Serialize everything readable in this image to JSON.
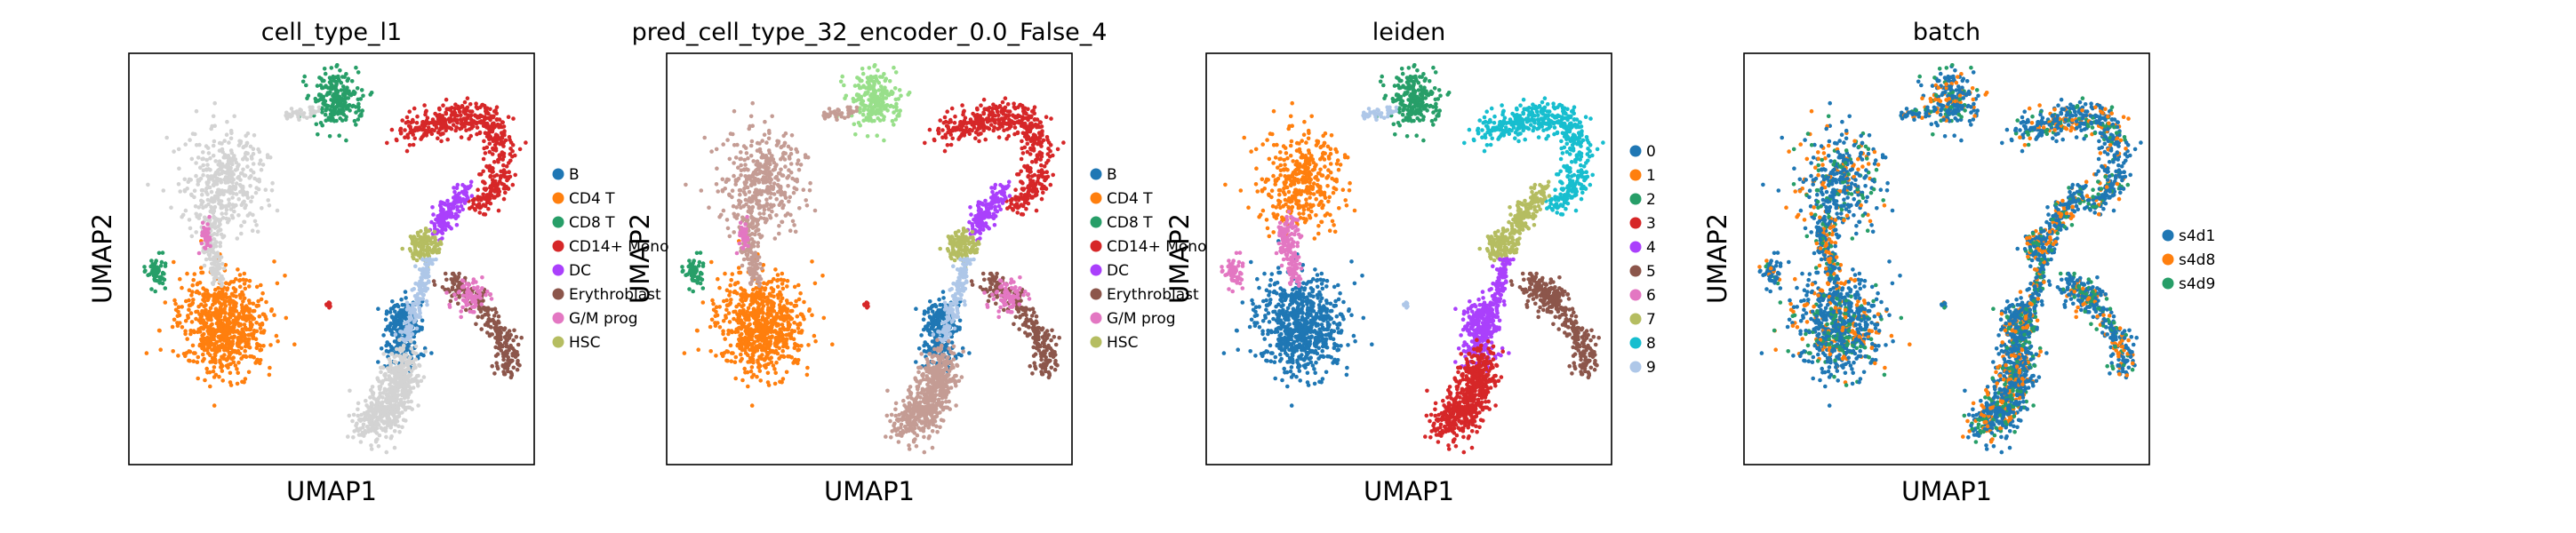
{
  "figure": {
    "panels": [
      {
        "title": "cell_type_l1",
        "xlabel": "UMAP1",
        "ylabel": "UMAP2",
        "legend": [
          {
            "label": "B",
            "color": "#1f77b4"
          },
          {
            "label": "CD4 T",
            "color": "#ff7f0e"
          },
          {
            "label": "CD8 T",
            "color": "#279e68"
          },
          {
            "label": "CD14+ Mono",
            "color": "#d62728"
          },
          {
            "label": "DC",
            "color": "#aa40fc"
          },
          {
            "label": "Erythroblast",
            "color": "#8c564b"
          },
          {
            "label": "G/M prog",
            "color": "#e377c2"
          },
          {
            "label": "HSC",
            "color": "#b5bd61"
          }
        ]
      },
      {
        "title": "pred_cell_type_32_encoder_0.0_False_4",
        "xlabel": "UMAP1",
        "ylabel": "UMAP2",
        "legend": [
          {
            "label": "B",
            "color": "#1f77b4"
          },
          {
            "label": "CD4 T",
            "color": "#ff7f0e"
          },
          {
            "label": "CD8 T",
            "color": "#279e68"
          },
          {
            "label": "CD14+ Mono",
            "color": "#d62728"
          },
          {
            "label": "DC",
            "color": "#aa40fc"
          },
          {
            "label": "Erythroblast",
            "color": "#8c564b"
          },
          {
            "label": "G/M prog",
            "color": "#e377c2"
          },
          {
            "label": "HSC",
            "color": "#b5bd61"
          }
        ]
      },
      {
        "title": "leiden",
        "xlabel": "UMAP1",
        "ylabel": "UMAP2",
        "legend": [
          {
            "label": "0",
            "color": "#1f77b4"
          },
          {
            "label": "1",
            "color": "#ff7f0e"
          },
          {
            "label": "2",
            "color": "#279e68"
          },
          {
            "label": "3",
            "color": "#d62728"
          },
          {
            "label": "4",
            "color": "#aa40fc"
          },
          {
            "label": "5",
            "color": "#8c564b"
          },
          {
            "label": "6",
            "color": "#e377c2"
          },
          {
            "label": "7",
            "color": "#b5bd61"
          },
          {
            "label": "8",
            "color": "#17becf"
          },
          {
            "label": "9",
            "color": "#aec7e8"
          }
        ]
      },
      {
        "title": "batch",
        "xlabel": "UMAP1",
        "ylabel": "UMAP2",
        "legend": [
          {
            "label": "s4d1",
            "color": "#1f77b4"
          },
          {
            "label": "s4d8",
            "color": "#ff7f0e"
          },
          {
            "label": "s4d9",
            "color": "#279e68"
          }
        ]
      }
    ]
  },
  "chart_data": [
    {
      "type": "scatter",
      "title": "cell_type_l1",
      "xlabel": "UMAP1",
      "ylabel": "UMAP2",
      "grid": false,
      "legend_position": "right",
      "unlabeled_color": "#d3d3d3",
      "series": [
        {
          "name": "B",
          "color": "#1f77b4",
          "approx_centroids": [
            [
              6.6,
              3.0
            ]
          ]
        },
        {
          "name": "CD4 T",
          "color": "#ff7f0e",
          "approx_centroids": [
            [
              2.8,
              3.2
            ]
          ]
        },
        {
          "name": "CD8 T",
          "color": "#279e68",
          "approx_centroids": [
            [
              0.7,
              4.7
            ],
            [
              4.7,
              8.9
            ]
          ]
        },
        {
          "name": "CD14+ Mono",
          "color": "#d62728",
          "approx_centroids": [
            [
              8.6,
              8.2
            ]
          ]
        },
        {
          "name": "DC",
          "color": "#aa40fc",
          "approx_centroids": [
            [
              7.8,
              6.3
            ]
          ]
        },
        {
          "name": "Erythroblast",
          "color": "#8c564b",
          "approx_centroids": [
            [
              9.2,
              3.5
            ]
          ]
        },
        {
          "name": "G/M prog",
          "color": "#e377c2",
          "approx_centroids": [
            [
              3.3,
              5.4
            ]
          ]
        },
        {
          "name": "HSC",
          "color": "#b5bd61",
          "approx_centroids": [
            [
              7.4,
              5.3
            ]
          ]
        }
      ]
    },
    {
      "type": "scatter",
      "title": "pred_cell_type_32_encoder_0.0_False_4",
      "xlabel": "UMAP1",
      "ylabel": "UMAP2",
      "grid": false,
      "legend_position": "right",
      "series": [
        {
          "name": "B",
          "color": "#1f77b4",
          "approx_centroids": [
            [
              6.6,
              3.0
            ]
          ]
        },
        {
          "name": "CD4 T",
          "color": "#ff7f0e",
          "approx_centroids": [
            [
              2.8,
              3.2
            ]
          ]
        },
        {
          "name": "CD8 T",
          "color": "#279e68",
          "approx_centroids": [
            [
              0.7,
              4.7
            ],
            [
              4.7,
              8.9
            ]
          ]
        },
        {
          "name": "CD14+ Mono",
          "color": "#d62728",
          "approx_centroids": [
            [
              8.6,
              8.2
            ]
          ]
        },
        {
          "name": "DC",
          "color": "#aa40fc",
          "approx_centroids": [
            [
              7.8,
              6.3
            ]
          ]
        },
        {
          "name": "Erythroblast",
          "color": "#8c564b",
          "approx_centroids": [
            [
              9.2,
              3.5
            ]
          ]
        },
        {
          "name": "G/M prog",
          "color": "#e377c2",
          "approx_centroids": [
            [
              3.3,
              5.4
            ]
          ]
        },
        {
          "name": "HSC",
          "color": "#b5bd61",
          "approx_centroids": [
            [
              7.4,
              5.3
            ]
          ]
        }
      ]
    },
    {
      "type": "scatter",
      "title": "leiden",
      "xlabel": "UMAP1",
      "ylabel": "UMAP2",
      "grid": false,
      "legend_position": "right",
      "series": [
        {
          "name": "0",
          "color": "#1f77b4",
          "approx_centroids": [
            [
              2.8,
              3.3
            ]
          ]
        },
        {
          "name": "1",
          "color": "#ff7f0e",
          "approx_centroids": [
            [
              2.5,
              7.1
            ]
          ]
        },
        {
          "name": "2",
          "color": "#279e68",
          "approx_centroids": [
            [
              4.7,
              8.9
            ],
            [
              0.7,
              4.7
            ]
          ]
        },
        {
          "name": "3",
          "color": "#d62728",
          "approx_centroids": [
            [
              5.9,
              1.0
            ]
          ]
        },
        {
          "name": "4",
          "color": "#aa40fc",
          "approx_centroids": [
            [
              6.8,
              3.0
            ]
          ]
        },
        {
          "name": "5",
          "color": "#8c564b",
          "approx_centroids": [
            [
              9.2,
              3.5
            ]
          ]
        },
        {
          "name": "6",
          "color": "#e377c2",
          "approx_centroids": [
            [
              0.6,
              4.6
            ],
            [
              2.2,
              5.5
            ]
          ]
        },
        {
          "name": "7",
          "color": "#b5bd61",
          "approx_centroids": [
            [
              7.8,
              6.4
            ],
            [
              7.4,
              5.2
            ]
          ]
        },
        {
          "name": "8",
          "color": "#17becf",
          "approx_centroids": [
            [
              8.7,
              8.2
            ]
          ]
        },
        {
          "name": "9",
          "color": "#aec7e8",
          "approx_centroids": [
            [
              7.0,
              8.0
            ]
          ]
        }
      ]
    },
    {
      "type": "scatter",
      "title": "batch",
      "xlabel": "UMAP1",
      "ylabel": "UMAP2",
      "grid": false,
      "legend_position": "right",
      "series": [
        {
          "name": "s4d1",
          "color": "#1f77b4"
        },
        {
          "name": "s4d8",
          "color": "#ff7f0e"
        },
        {
          "name": "s4d9",
          "color": "#279e68"
        }
      ]
    }
  ]
}
